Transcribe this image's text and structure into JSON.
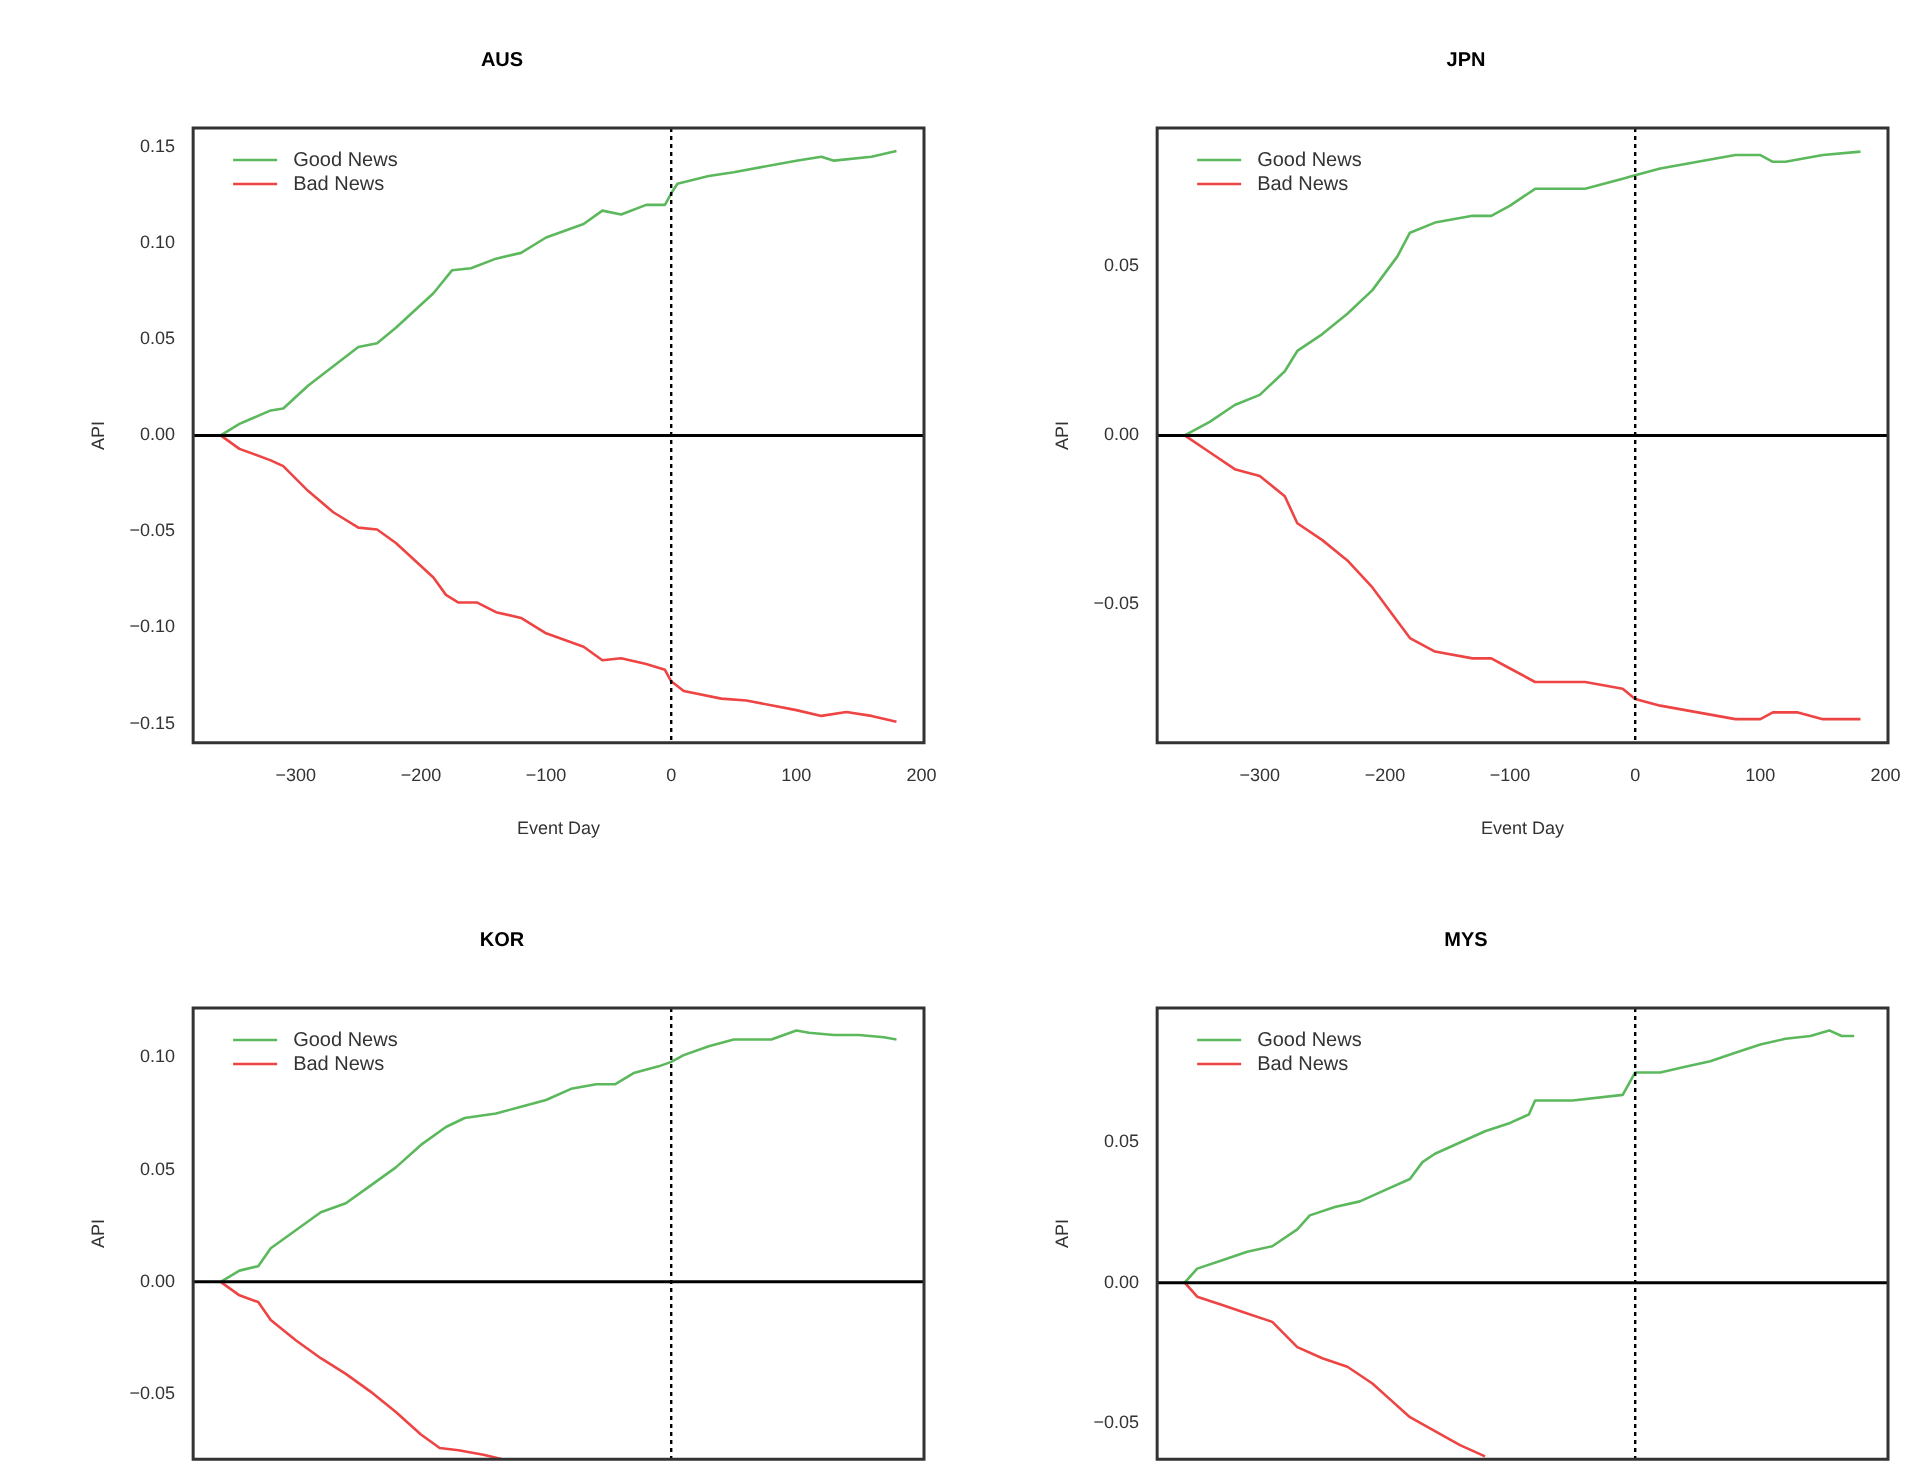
{
  "chart_data": [
    {
      "type": "line",
      "title": "AUS",
      "xlabel": "Event Day",
      "ylabel": "API",
      "xlim": [
        -382,
        202
      ],
      "xticks": [
        -300,
        -200,
        -100,
        0,
        100,
        200
      ],
      "ylim": [
        -0.16,
        0.16
      ],
      "yticks": [
        {
          "value": -0.15,
          "label": "−0.15"
        },
        {
          "value": -0.1,
          "label": "−0.10"
        },
        {
          "value": -0.05,
          "label": "−0.05"
        },
        {
          "value": 0,
          "label": "0.00"
        },
        {
          "value": 0.05,
          "label": "0.05"
        },
        {
          "value": 0.1,
          "label": "0.10"
        },
        {
          "value": 0.15,
          "label": "0.15"
        }
      ],
      "legend": "top left",
      "marker": "none",
      "line_style": "solid",
      "grid": false,
      "ref_lines": [
        {
          "axis": "x",
          "value": 0,
          "color": "#000000",
          "line_style": "dotted"
        },
        {
          "axis": "y",
          "value": 0,
          "color": "#000000",
          "line_style": "solid"
        }
      ],
      "series": [
        {
          "name": "Good News",
          "color": "#5cb85c",
          "x": [
            -360,
            -345,
            -320,
            -310,
            -290,
            -270,
            -250,
            -235,
            -220,
            -190,
            -175,
            -160,
            -140,
            -120,
            -100,
            -70,
            -55,
            -40,
            -20,
            -5,
            0,
            5,
            30,
            50,
            100,
            120,
            130,
            160,
            180
          ],
          "values": [
            0,
            0.006,
            0.013,
            0.014,
            0.026,
            0.036,
            0.046,
            0.048,
            0.056,
            0.074,
            0.086,
            0.087,
            0.092,
            0.095,
            0.103,
            0.11,
            0.117,
            0.115,
            0.12,
            0.12,
            0.126,
            0.131,
            0.135,
            0.137,
            0.143,
            0.145,
            0.143,
            0.145,
            0.148
          ]
        },
        {
          "name": "Bad News",
          "color": "#ee4444",
          "x": [
            -360,
            -345,
            -320,
            -310,
            -290,
            -270,
            -250,
            -235,
            -220,
            -190,
            -180,
            -170,
            -155,
            -140,
            -120,
            -100,
            -70,
            -55,
            -40,
            -20,
            -5,
            0,
            10,
            40,
            60,
            100,
            120,
            140,
            160,
            180
          ],
          "values": [
            0,
            -0.007,
            -0.013,
            -0.016,
            -0.029,
            -0.04,
            -0.048,
            -0.049,
            -0.056,
            -0.074,
            -0.083,
            -0.087,
            -0.087,
            -0.092,
            -0.095,
            -0.103,
            -0.11,
            -0.117,
            -0.116,
            -0.119,
            -0.122,
            -0.128,
            -0.133,
            -0.137,
            -0.138,
            -0.143,
            -0.146,
            -0.144,
            -0.146,
            -0.149
          ]
        }
      ]
    },
    {
      "type": "line",
      "title": "JPN",
      "xlabel": "Event Day",
      "ylabel": "API",
      "xlim": [
        -382,
        202
      ],
      "xticks": [
        -300,
        -200,
        -100,
        0,
        100,
        200
      ],
      "ylim": [
        -0.091,
        0.091
      ],
      "yticks": [
        {
          "value": -0.05,
          "label": "−0.05"
        },
        {
          "value": 0,
          "label": "0.00"
        },
        {
          "value": 0.05,
          "label": "0.05"
        }
      ],
      "legend": "top left",
      "marker": "none",
      "line_style": "solid",
      "grid": false,
      "ref_lines": [
        {
          "axis": "x",
          "value": 0,
          "color": "#000000",
          "line_style": "dotted"
        },
        {
          "axis": "y",
          "value": 0,
          "color": "#000000",
          "line_style": "solid"
        }
      ],
      "series": [
        {
          "name": "Good News",
          "color": "#5cb85c",
          "x": [
            -360,
            -340,
            -320,
            -300,
            -280,
            -270,
            -250,
            -230,
            -210,
            -190,
            -180,
            -160,
            -130,
            -115,
            -100,
            -80,
            -40,
            -10,
            0,
            20,
            50,
            80,
            100,
            110,
            120,
            150,
            180
          ],
          "values": [
            0,
            0.004,
            0.009,
            0.012,
            0.019,
            0.025,
            0.03,
            0.036,
            0.043,
            0.053,
            0.06,
            0.063,
            0.065,
            0.065,
            0.068,
            0.073,
            0.073,
            0.076,
            0.077,
            0.079,
            0.081,
            0.083,
            0.083,
            0.081,
            0.081,
            0.083,
            0.084
          ]
        },
        {
          "name": "Bad News",
          "color": "#ee4444",
          "x": [
            -360,
            -340,
            -320,
            -300,
            -280,
            -270,
            -250,
            -230,
            -210,
            -190,
            -180,
            -160,
            -130,
            -115,
            -100,
            -80,
            -40,
            -10,
            0,
            20,
            50,
            80,
            100,
            110,
            130,
            150,
            180
          ],
          "values": [
            0,
            -0.005,
            -0.01,
            -0.012,
            -0.018,
            -0.026,
            -0.031,
            -0.037,
            -0.045,
            -0.055,
            -0.06,
            -0.064,
            -0.066,
            -0.066,
            -0.069,
            -0.073,
            -0.073,
            -0.075,
            -0.078,
            -0.08,
            -0.082,
            -0.084,
            -0.084,
            -0.082,
            -0.082,
            -0.084,
            -0.084
          ]
        }
      ]
    },
    {
      "type": "line",
      "title": "KOR",
      "ylabel": "API",
      "xlim": [
        -382,
        202
      ],
      "ylim": [
        -0.079,
        0.122
      ],
      "yticks": [
        {
          "value": -0.05,
          "label": "−0.05"
        },
        {
          "value": 0,
          "label": "0.00"
        },
        {
          "value": 0.05,
          "label": "0.05"
        },
        {
          "value": 0.1,
          "label": "0.10"
        }
      ],
      "tick_labels": "y",
      "legend": "top left",
      "marker": "none",
      "line_style": "solid",
      "grid": false,
      "ref_lines": [
        {
          "axis": "x",
          "value": 0,
          "color": "#000000",
          "line_style": "dotted"
        },
        {
          "axis": "y",
          "value": 0,
          "color": "#000000",
          "line_style": "solid"
        }
      ],
      "series": [
        {
          "name": "Good News",
          "color": "#5cb85c",
          "x": [
            -360,
            -345,
            -330,
            -320,
            -300,
            -280,
            -260,
            -240,
            -220,
            -200,
            -180,
            -165,
            -140,
            -120,
            -100,
            -80,
            -60,
            -45,
            -30,
            -10,
            0,
            10,
            30,
            50,
            80,
            100,
            110,
            130,
            150,
            170,
            180
          ],
          "values": [
            0,
            0.005,
            0.007,
            0.015,
            0.023,
            0.031,
            0.035,
            0.043,
            0.051,
            0.061,
            0.069,
            0.073,
            0.075,
            0.078,
            0.081,
            0.086,
            0.088,
            0.088,
            0.093,
            0.096,
            0.098,
            0.101,
            0.105,
            0.108,
            0.108,
            0.112,
            0.111,
            0.11,
            0.11,
            0.109,
            0.108
          ]
        },
        {
          "name": "Bad News",
          "color": "#ee4444",
          "x": [
            -360,
            -345,
            -330,
            -320,
            -300,
            -280,
            -260,
            -240,
            -220,
            -200,
            -185,
            -170,
            -150,
            -135
          ],
          "values": [
            0,
            -0.006,
            -0.009,
            -0.017,
            -0.026,
            -0.034,
            -0.041,
            -0.049,
            -0.058,
            -0.068,
            -0.074,
            -0.075,
            -0.077,
            -0.079
          ]
        }
      ]
    },
    {
      "type": "line",
      "title": "MYS",
      "ylabel": "API",
      "xlim": [
        -382,
        202
      ],
      "ylim": [
        -0.063,
        0.098
      ],
      "yticks": [
        {
          "value": -0.05,
          "label": "−0.05"
        },
        {
          "value": 0,
          "label": "0.00"
        },
        {
          "value": 0.05,
          "label": "0.05"
        }
      ],
      "tick_labels": "y",
      "legend": "top left",
      "marker": "none",
      "line_style": "solid",
      "grid": false,
      "ref_lines": [
        {
          "axis": "x",
          "value": 0,
          "color": "#000000",
          "line_style": "dotted"
        },
        {
          "axis": "y",
          "value": 0,
          "color": "#000000",
          "line_style": "solid"
        }
      ],
      "series": [
        {
          "name": "Good News",
          "color": "#5cb85c",
          "x": [
            -360,
            -350,
            -330,
            -310,
            -290,
            -270,
            -260,
            -240,
            -220,
            -200,
            -180,
            -170,
            -160,
            -140,
            -120,
            -100,
            -85,
            -80,
            -50,
            -10,
            0,
            20,
            40,
            60,
            80,
            100,
            120,
            140,
            155,
            165,
            175
          ],
          "values": [
            0,
            0.005,
            0.008,
            0.011,
            0.013,
            0.019,
            0.024,
            0.027,
            0.029,
            0.033,
            0.037,
            0.043,
            0.046,
            0.05,
            0.054,
            0.057,
            0.06,
            0.065,
            0.065,
            0.067,
            0.075,
            0.075,
            0.077,
            0.079,
            0.082,
            0.085,
            0.087,
            0.088,
            0.09,
            0.088,
            0.088
          ]
        },
        {
          "name": "Bad News",
          "color": "#ee4444",
          "x": [
            -360,
            -350,
            -330,
            -310,
            -290,
            -270,
            -250,
            -230,
            -210,
            -195,
            -180,
            -160,
            -140,
            -120
          ],
          "values": [
            0,
            -0.005,
            -0.008,
            -0.011,
            -0.014,
            -0.023,
            -0.027,
            -0.03,
            -0.036,
            -0.042,
            -0.048,
            -0.053,
            -0.058,
            -0.062
          ]
        }
      ]
    }
  ]
}
